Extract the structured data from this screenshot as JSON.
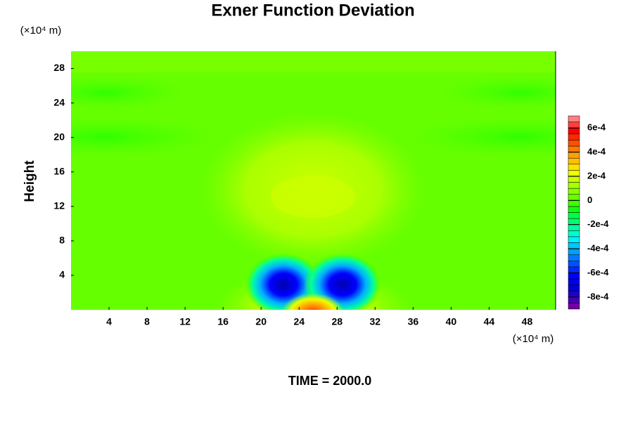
{
  "chart_data": {
    "type": "contour",
    "title": "Exner Function Deviation",
    "ylabel": "Height",
    "yunit": "(×10⁴ m)",
    "xunit": "(×10⁴ m)",
    "footer": "TIME = 2000.0",
    "xlim": [
      0,
      51
    ],
    "xticks": [
      4,
      8,
      12,
      16,
      20,
      24,
      28,
      32,
      36,
      40,
      44,
      48
    ],
    "ylim": [
      0,
      30
    ],
    "yticks": [
      4,
      8,
      12,
      16,
      20,
      24,
      28
    ],
    "colorbar": {
      "lim": [
        -0.0009,
        0.0007
      ],
      "ticks": [
        {
          "value": -0.0008,
          "label": "-8e-4"
        },
        {
          "value": -0.0006,
          "label": "-6e-4"
        },
        {
          "value": -0.0004,
          "label": "-4e-4"
        },
        {
          "value": -0.0002,
          "label": "-2e-4"
        },
        0,
        {
          "value": 0.0002,
          "label": "2e-4"
        },
        {
          "value": 0.0004,
          "label": "4e-4"
        },
        {
          "value": 0.0006,
          "label": "6e-4"
        }
      ],
      "colors": [
        "#7000a0",
        "#4800b4",
        "#2000c8",
        "#0000d0",
        "#0000e8",
        "#0000ff",
        "#0028ff",
        "#0050ff",
        "#0078ff",
        "#00a0ff",
        "#00c8ff",
        "#00f0ff",
        "#00ffd0",
        "#00ffa0",
        "#00ff70",
        "#00ff40",
        "#10ff10",
        "#40ff00",
        "#66ff00",
        "#88ff00",
        "#aaff00",
        "#ccff00",
        "#eeff00",
        "#ffe000",
        "#ffc000",
        "#ffa000",
        "#ff7800",
        "#ff5000",
        "#ff2800",
        "#ff0000",
        "#ff4040",
        "#ff8080"
      ]
    }
  }
}
